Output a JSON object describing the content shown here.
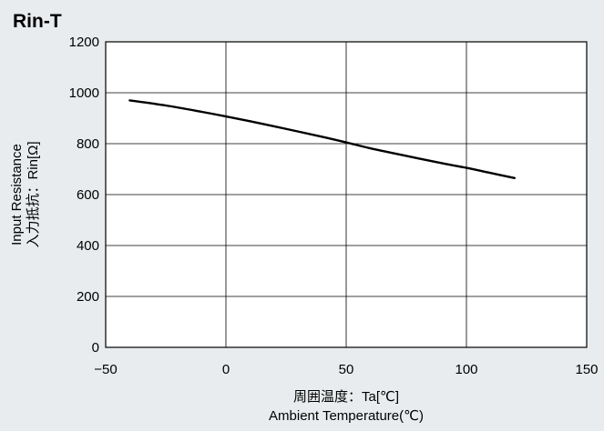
{
  "chart_data": {
    "type": "line",
    "title": "Rin-T",
    "xlabel": [
      "周囲温度：Ta[℃]",
      "Ambient Temperature(℃)"
    ],
    "ylabel": [
      "Input Resistance",
      "入力抵抗：Rin[Ω]"
    ],
    "xlim": [
      -50,
      150
    ],
    "ylim": [
      0,
      1200
    ],
    "xticks": [
      -50,
      0,
      50,
      100,
      150
    ],
    "yticks": [
      0,
      200,
      400,
      600,
      800,
      1000,
      1200
    ],
    "xtick_labels": [
      "−50",
      "0",
      "50",
      "100",
      "150"
    ],
    "ytick_labels": [
      "0",
      "200",
      "400",
      "600",
      "800",
      "1000",
      "1200"
    ],
    "grid": true,
    "series": [
      {
        "x": [
          -40,
          -25,
          -10,
          0,
          10,
          25,
          40,
          50,
          60,
          75,
          90,
          100,
          110,
          120
        ],
        "values": [
          970,
          950,
          925,
          907,
          888,
          858,
          827,
          805,
          782,
          752,
          723,
          705,
          685,
          665
        ],
        "color": "#000000"
      }
    ]
  }
}
